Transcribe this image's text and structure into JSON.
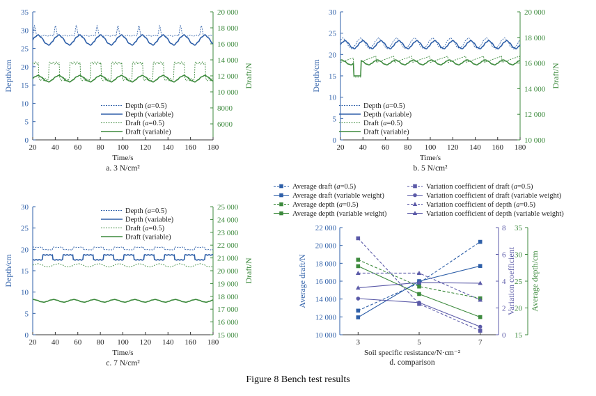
{
  "figure_caption": "Figure 8    Bench test results",
  "colors": {
    "blue": "#2e5fa8",
    "green": "#3d8a3d",
    "purple": "#5b5aa8",
    "axis_blue": "#2e5fa8",
    "axis_green": "#3d8a3d"
  },
  "chart_data": [
    {
      "id": "a",
      "type": "line",
      "subtitle": "a. 3 N/cm²",
      "xlabel": "Time/s",
      "ylabel_left": "Depth/cm",
      "ylabel_right": "Draft/N",
      "xlim": [
        20,
        180
      ],
      "xticks": [
        "20",
        "40",
        "60",
        "80",
        "100",
        "120",
        "140",
        "160",
        "180"
      ],
      "ylim_left": [
        0,
        35
      ],
      "yticks_left": [
        "0",
        "5",
        "10",
        "15",
        "20",
        "25",
        "30",
        "35"
      ],
      "ylim_right": [
        4000,
        20000
      ],
      "yticks_right": [
        "6000",
        "8000",
        "10 000",
        "12 000",
        "14 000",
        "16 000",
        "18 000",
        "20 000"
      ],
      "legend": [
        {
          "label": "Depth (a=0.5)",
          "prefix": "Depth (",
          "italic": "a",
          "suffix": "=0.5)",
          "color": "blue",
          "dash": true
        },
        {
          "label": "Depth (variable)",
          "prefix": "Depth (variable)",
          "italic": "",
          "suffix": "",
          "color": "blue",
          "dash": false
        },
        {
          "label": "Draft (a=0.5)",
          "prefix": "Draft (",
          "italic": "a",
          "suffix": "=0.5)",
          "color": "green",
          "dash": true
        },
        {
          "label": "Draft (variable)",
          "prefix": "Draft (variable)",
          "italic": "",
          "suffix": "",
          "color": "green",
          "dash": false
        }
      ],
      "series": [
        {
          "name": "Depth (a=0.5)",
          "axis": "left",
          "color": "blue",
          "dash": true,
          "shape": "spike",
          "base": 28.5,
          "amp": 3.2,
          "period": 18.5,
          "phase": 0
        },
        {
          "name": "Depth (variable)",
          "axis": "left",
          "color": "blue",
          "dash": false,
          "shape": "smooth",
          "base": 27.3,
          "amp": 1.3,
          "period": 18.5,
          "phase": 0
        },
        {
          "name": "Draft (a=0.5)",
          "axis": "right",
          "color": "green",
          "dash": true,
          "shape": "square",
          "base": 11800,
          "amp": 1800,
          "period": 18.5,
          "phase": 4
        },
        {
          "name": "Draft (variable)",
          "axis": "right",
          "color": "green",
          "dash": false,
          "shape": "smooth",
          "base": 11650,
          "amp": 380,
          "period": 18.5,
          "phase": 0
        }
      ]
    },
    {
      "id": "b",
      "type": "line",
      "subtitle": "b. 5 N/cm²",
      "xlabel": "Time/s",
      "ylabel_left": "Depth/cm",
      "ylabel_right": "Draft/N",
      "xlim": [
        20,
        180
      ],
      "xticks": [
        "20",
        "40",
        "60",
        "80",
        "100",
        "120",
        "140",
        "160",
        "180"
      ],
      "ylim_left": [
        0,
        30
      ],
      "yticks_left": [
        "0",
        "5",
        "10",
        "15",
        "20",
        "25",
        "30"
      ],
      "ylim_right": [
        10000,
        20000
      ],
      "yticks_right": [
        "10 000",
        "12 000",
        "14 000",
        "16 000",
        "18 000",
        "20 000"
      ],
      "legend": [
        {
          "label": "Depth (a=0.5)",
          "prefix": "Depth (",
          "italic": "a",
          "suffix": "=0.5)",
          "color": "blue",
          "dash": true
        },
        {
          "label": "Depth (variable)",
          "prefix": "Depth (variable)",
          "italic": "",
          "suffix": "",
          "color": "blue",
          "dash": false
        },
        {
          "label": "Draft (a=0.5)",
          "prefix": "Draft (",
          "italic": "a",
          "suffix": "=0.5)",
          "color": "green",
          "dash": true
        },
        {
          "label": "Draft (variable)",
          "prefix": "Draft (variable)",
          "italic": "",
          "suffix": "",
          "color": "green",
          "dash": false
        }
      ],
      "series": [
        {
          "name": "Depth (a=0.5)",
          "axis": "left",
          "color": "blue",
          "dash": true,
          "shape": "smooth",
          "base": 22.6,
          "amp": 1.2,
          "period": 16,
          "phase": 2
        },
        {
          "name": "Depth (variable)",
          "axis": "left",
          "color": "blue",
          "dash": false,
          "shape": "smooth",
          "base": 22.3,
          "amp": 0.9,
          "period": 16,
          "phase": 0
        },
        {
          "name": "Draft (a=0.5)",
          "axis": "right",
          "color": "green",
          "dash": true,
          "shape": "ramp",
          "base": 16300,
          "amp": 250,
          "period": 16,
          "phase": 0,
          "dip": [
            32,
            38,
            14900
          ]
        },
        {
          "name": "Draft (variable)",
          "axis": "right",
          "color": "green",
          "dash": false,
          "shape": "smooth",
          "base": 16050,
          "amp": 180,
          "period": 16,
          "phase": 3,
          "dip": [
            32,
            38,
            15000
          ]
        }
      ]
    },
    {
      "id": "c",
      "type": "line",
      "subtitle": "c. 7 N/cm²",
      "xlabel": "Time/s",
      "ylabel_left": "Depth/cm",
      "ylabel_right": "Draft/N",
      "xlim": [
        20,
        180
      ],
      "xticks": [
        "20",
        "40",
        "60",
        "80",
        "100",
        "120",
        "140",
        "160",
        "180"
      ],
      "ylim_left": [
        0,
        30
      ],
      "yticks_left": [
        "0",
        "5",
        "10",
        "15",
        "20",
        "25",
        "30"
      ],
      "ylim_right": [
        15000,
        25000
      ],
      "yticks_right": [
        "15 000",
        "16 000",
        "17 000",
        "18 000",
        "19 000",
        "20 000",
        "21 000",
        "22 000",
        "23 000",
        "24 000",
        "25 000"
      ],
      "legend": [
        {
          "label": "Depth (a=0.5)",
          "prefix": "Depth (",
          "italic": "a",
          "suffix": "=0.5)",
          "color": "blue",
          "dash": true
        },
        {
          "label": "Depth (variable)",
          "prefix": "Depth (variable)",
          "italic": "",
          "suffix": "",
          "color": "blue",
          "dash": false
        },
        {
          "label": "Draft (a=0.5)",
          "prefix": "Draft (",
          "italic": "a",
          "suffix": "=0.5)",
          "color": "green",
          "dash": true
        },
        {
          "label": "Draft (variable)",
          "prefix": "Draft (variable)",
          "italic": "",
          "suffix": "",
          "color": "green",
          "dash": false
        }
      ],
      "series": [
        {
          "name": "Depth (a=0.5)",
          "axis": "left",
          "color": "blue",
          "dash": true,
          "shape": "square",
          "base": 20.0,
          "amp": 0.5,
          "period": 18,
          "phase": 0
        },
        {
          "name": "Depth (variable)",
          "axis": "left",
          "color": "blue",
          "dash": false,
          "shape": "square",
          "base": 17.7,
          "amp": 1.0,
          "period": 18,
          "phase": 9
        },
        {
          "name": "Draft (a=0.5)",
          "axis": "right",
          "color": "green",
          "dash": true,
          "shape": "smooth",
          "base": 20420,
          "amp": 120,
          "period": 18,
          "phase": 0
        },
        {
          "name": "Draft (variable)",
          "axis": "right",
          "color": "green",
          "dash": false,
          "shape": "smooth",
          "base": 17650,
          "amp": 100,
          "period": 18,
          "phase": 4
        }
      ]
    },
    {
      "id": "d",
      "type": "line",
      "subtitle": "d. comparison",
      "xlabel": "Soil specific resistance/N·cm⁻²",
      "categories": [
        "3",
        "5",
        "7"
      ],
      "axes": {
        "draft": {
          "label": "Average draft/N",
          "ylim": [
            10000,
            22000
          ],
          "ticks": [
            "10 000",
            "12 000",
            "14 000",
            "16 000",
            "18 000",
            "20 000",
            "22 000"
          ]
        },
        "cv": {
          "label": "Variation coefficient",
          "ylim": [
            0,
            8
          ],
          "ticks": [
            "0",
            "2",
            "4",
            "6",
            "8"
          ]
        },
        "depth": {
          "label": "Average depth/cm",
          "ylim": [
            15,
            35
          ],
          "ticks": [
            "15",
            "20",
            "25",
            "30",
            "35"
          ]
        }
      },
      "legend_left": [
        {
          "label": "Average draft (a=0.5)",
          "prefix": "Average draft (",
          "italic": "a",
          "suffix": "=0.5)",
          "color": "blue",
          "dash": true,
          "marker": "square"
        },
        {
          "label": "Average draft (variable weight)",
          "prefix": "Average draft (variable weight)",
          "italic": "",
          "suffix": "",
          "color": "blue",
          "dash": false,
          "marker": "square"
        },
        {
          "label": "Average depth (a=0.5)",
          "prefix": "Average depth (",
          "italic": "a",
          "suffix": "=0.5)",
          "color": "green",
          "dash": true,
          "marker": "square"
        },
        {
          "label": "Average depth (variable weight)",
          "prefix": "Average depth (variable weight)",
          "italic": "",
          "suffix": "",
          "color": "green",
          "dash": false,
          "marker": "square"
        }
      ],
      "legend_right": [
        {
          "label": "Variation coefficient of draft (a=0.5)",
          "prefix": "Variation coefficient of draft (",
          "italic": "a",
          "suffix": "=0.5)",
          "color": "purple",
          "dash": true,
          "marker": "square"
        },
        {
          "label": "Variation coefficient of draft (variable weight)",
          "prefix": "Variation coefficient of draft (variable weight)",
          "italic": "",
          "suffix": "",
          "color": "purple",
          "dash": false,
          "marker": "circle"
        },
        {
          "label": "Variation coefficient of depth (a=0.5)",
          "prefix": "Variation coefficient of depth (",
          "italic": "a",
          "suffix": "=0.5)",
          "color": "purple",
          "dash": true,
          "marker": "triangle"
        },
        {
          "label": "Variation coefficient of depth (variable weight)",
          "prefix": "Variation coefficient of depth (variable weight)",
          "italic": "",
          "suffix": "",
          "color": "purple",
          "dash": false,
          "marker": "triangle"
        }
      ],
      "series": [
        {
          "name": "Average draft (a=0.5)",
          "axis": "draft",
          "color": "blue",
          "dash": true,
          "marker": "square",
          "values": [
            12700,
            15800,
            20400
          ]
        },
        {
          "name": "Average draft (variable weight)",
          "axis": "draft",
          "color": "blue",
          "dash": false,
          "marker": "square",
          "values": [
            11950,
            16000,
            17700
          ]
        },
        {
          "name": "Average depth (a=0.5)",
          "axis": "depth",
          "color": "green",
          "dash": true,
          "marker": "square",
          "values": [
            29.0,
            24.0,
            21.8
          ]
        },
        {
          "name": "Average depth (variable weight)",
          "axis": "depth",
          "color": "green",
          "dash": false,
          "marker": "square",
          "values": [
            27.8,
            22.6,
            18.3
          ]
        },
        {
          "name": "Variation coefficient of draft (a=0.5)",
          "axis": "cv",
          "color": "purple",
          "dash": true,
          "marker": "square",
          "values": [
            7.2,
            2.3,
            0.3
          ]
        },
        {
          "name": "Variation coefficient of draft (variable weight)",
          "axis": "cv",
          "color": "purple",
          "dash": false,
          "marker": "circle",
          "values": [
            2.7,
            2.4,
            0.6
          ]
        },
        {
          "name": "Variation coefficient of depth (a=0.5)",
          "axis": "cv",
          "color": "purple",
          "dash": true,
          "marker": "triangle",
          "values": [
            4.6,
            4.6,
            2.6
          ]
        },
        {
          "name": "Variation coefficient of depth (variable weight)",
          "axis": "cv",
          "color": "purple",
          "dash": false,
          "marker": "triangle",
          "values": [
            3.5,
            3.9,
            3.85
          ]
        }
      ]
    }
  ]
}
